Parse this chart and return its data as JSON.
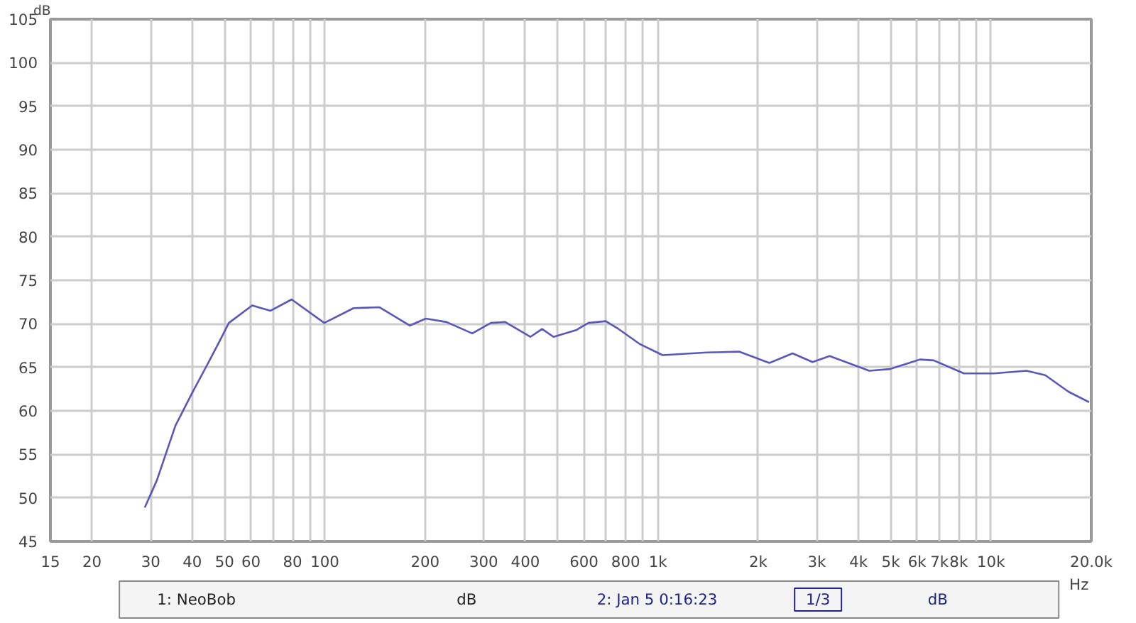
{
  "chart_data": {
    "type": "line",
    "ylabel": "dB",
    "xlabel": "Hz",
    "log": "x",
    "series": [
      {
        "name": "2: Jan 5 0:16:23",
        "color": "#5b57b8",
        "x": [
          28.8,
          31.3,
          35.6,
          39.9,
          44.5,
          48.3,
          51.5,
          60.5,
          68.7,
          79.5,
          99.6,
          122,
          146,
          180,
          201,
          232,
          277,
          315,
          348,
          414,
          449,
          486,
          570,
          618,
          697,
          762,
          880,
          1033,
          1402,
          1753,
          2161,
          2537,
          2912,
          3278,
          4309,
          4972,
          6118,
          6727,
          8290,
          10200,
          12780,
          14550,
          17080,
          19700
        ],
        "values": [
          48.9,
          52.0,
          58.3,
          62.0,
          65.4,
          68.0,
          70.1,
          72.1,
          71.5,
          72.8,
          70.1,
          71.8,
          71.9,
          69.8,
          70.6,
          70.2,
          68.9,
          70.1,
          70.2,
          68.5,
          69.4,
          68.5,
          69.3,
          70.1,
          70.3,
          69.4,
          67.7,
          66.4,
          66.7,
          66.8,
          65.5,
          66.6,
          65.6,
          66.3,
          64.6,
          64.8,
          65.9,
          65.8,
          64.3,
          64.3,
          64.6,
          64.1,
          62.2,
          61.0
        ]
      }
    ],
    "xlim": [
      15,
      20000
    ],
    "ylim": [
      45,
      105
    ],
    "xticks": [
      15,
      20,
      30,
      40,
      50,
      60,
      {
        "value": 70,
        "label": null
      },
      80,
      {
        "value": 90,
        "label": null
      },
      100,
      200,
      300,
      400,
      {
        "value": 500,
        "label": null
      },
      600,
      {
        "value": 700,
        "label": null
      },
      800,
      {
        "value": 900,
        "label": null
      },
      {
        "value": 1000,
        "label": "1k"
      },
      {
        "value": 2000,
        "label": "2k"
      },
      {
        "value": 3000,
        "label": "3k"
      },
      {
        "value": 4000,
        "label": "4k"
      },
      {
        "value": 5000,
        "label": "5k"
      },
      {
        "value": 6000,
        "label": "6k"
      },
      {
        "value": 7000,
        "label": "7k"
      },
      {
        "value": 8000,
        "label": "8k"
      },
      {
        "value": 9000,
        "label": null
      },
      {
        "value": 10000,
        "label": "10k"
      },
      {
        "value": 20000,
        "label": "20.0k"
      }
    ],
    "yticks": [
      45,
      50,
      55,
      60,
      65,
      70,
      75,
      80,
      85,
      90,
      95,
      100,
      105
    ],
    "grid": true,
    "legend": "bottom",
    "line_style": "solid",
    "marker": "none",
    "annotations": [
      "1: NeoBob",
      "dB",
      "1/3",
      "dB"
    ]
  }
}
